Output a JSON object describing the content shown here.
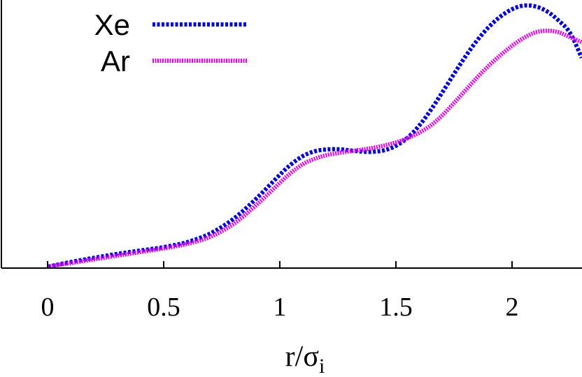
{
  "chart_data": {
    "type": "line",
    "title": "",
    "xlabel": "r/σ",
    "xlabel_subscript": "i",
    "ylabel": "",
    "xlim": [
      -0.2,
      2.3
    ],
    "ylim": [
      -0.05,
      1.05
    ],
    "xticks": [
      {
        "value": 0,
        "label": "0"
      },
      {
        "value": 0.5,
        "label": "0.5"
      },
      {
        "value": 1,
        "label": "1"
      },
      {
        "value": 1.5,
        "label": "1.5"
      },
      {
        "value": 2,
        "label": "2"
      }
    ],
    "grid": false,
    "legend_position": "top-left",
    "series": [
      {
        "name": "Xe",
        "color": "#0000ee",
        "style": "dotted",
        "x": [
          0,
          0.1,
          0.2,
          0.3,
          0.4,
          0.5,
          0.6,
          0.7,
          0.8,
          0.9,
          1.0,
          1.05,
          1.1,
          1.15,
          1.2,
          1.25,
          1.3,
          1.35,
          1.4,
          1.45,
          1.5,
          1.55,
          1.6,
          1.65,
          1.7,
          1.75,
          1.8,
          1.85,
          1.9,
          1.95,
          2.0,
          2.05,
          2.1,
          2.15,
          2.2,
          2.25,
          2.3
        ],
        "y": [
          0.0,
          0.018,
          0.034,
          0.049,
          0.062,
          0.075,
          0.094,
          0.127,
          0.183,
          0.262,
          0.352,
          0.393,
          0.424,
          0.442,
          0.449,
          0.45,
          0.446,
          0.441,
          0.44,
          0.446,
          0.463,
          0.494,
          0.54,
          0.6,
          0.668,
          0.738,
          0.806,
          0.867,
          0.918,
          0.958,
          0.986,
          1.0,
          0.997,
          0.978,
          0.943,
          0.895,
          0.8
        ]
      },
      {
        "name": "Ar",
        "color": "#ee00ee",
        "style": "dotted",
        "x": [
          0,
          0.1,
          0.2,
          0.3,
          0.4,
          0.5,
          0.6,
          0.7,
          0.8,
          0.9,
          1.0,
          1.05,
          1.1,
          1.15,
          1.2,
          1.25,
          1.3,
          1.35,
          1.4,
          1.45,
          1.5,
          1.55,
          1.6,
          1.65,
          1.7,
          1.75,
          1.8,
          1.85,
          1.9,
          1.95,
          2.0,
          2.05,
          2.1,
          2.15,
          2.2,
          2.25,
          2.3
        ],
        "y": [
          0.0,
          0.014,
          0.028,
          0.042,
          0.056,
          0.07,
          0.087,
          0.114,
          0.163,
          0.237,
          0.321,
          0.361,
          0.393,
          0.413,
          0.427,
          0.435,
          0.442,
          0.448,
          0.455,
          0.464,
          0.476,
          0.492,
          0.513,
          0.541,
          0.58,
          0.627,
          0.676,
          0.725,
          0.77,
          0.81,
          0.846,
          0.876,
          0.897,
          0.904,
          0.898,
          0.879,
          0.86
        ]
      }
    ]
  }
}
